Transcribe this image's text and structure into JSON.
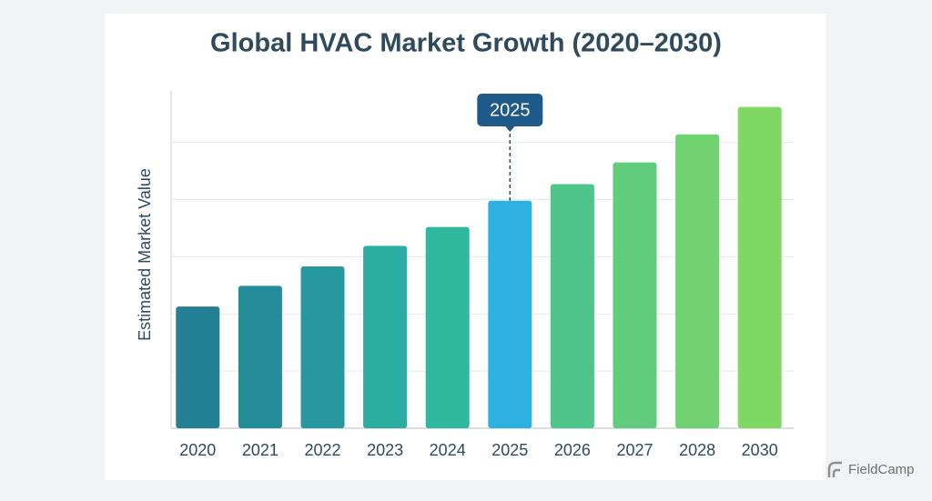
{
  "chart_data": {
    "type": "bar",
    "title": "Global HVAC Market Growth (2020–2030)",
    "y_label": "Estimated Market Value",
    "categories": [
      "2020",
      "2021",
      "2022",
      "2023",
      "2024",
      "2025",
      "2026",
      "2027",
      "2028",
      "2030"
    ],
    "values": [
      2.13,
      2.49,
      2.83,
      3.19,
      3.52,
      3.98,
      4.27,
      4.65,
      5.14,
      5.62
    ],
    "colors": [
      "#237f94",
      "#248b99",
      "#27999e",
      "#2bada0",
      "#30b89f",
      "#2eb0e0",
      "#4ec689",
      "#61cc7c",
      "#70d270",
      "#7ed863"
    ],
    "highlight": "2025",
    "ylim": [
      0,
      5.9
    ],
    "yticks": [
      0,
      1,
      2,
      3,
      4,
      5
    ],
    "grid": true
  },
  "watermark": "FieldCamp"
}
